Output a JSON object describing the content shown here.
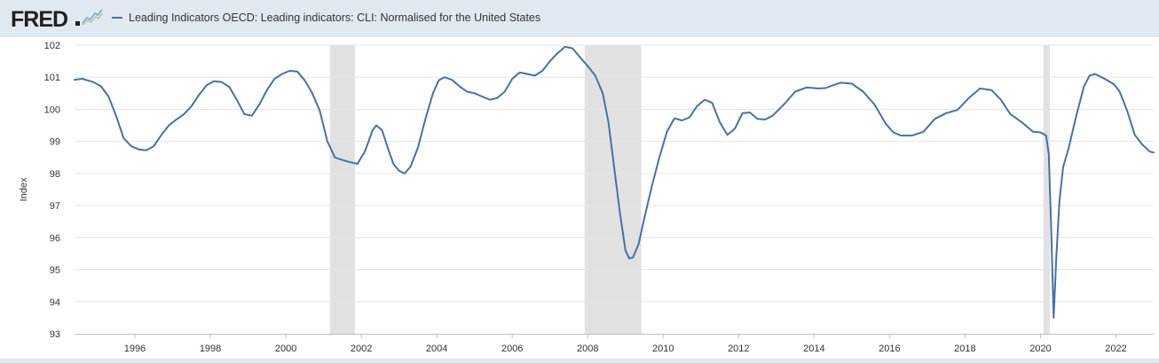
{
  "header": {
    "logo_text": "FRED",
    "legend_label": "Leading Indicators OECD: Leading indicators: CLI: Normalised for the United States"
  },
  "colors": {
    "series": "#4572a7",
    "recession": "#e1e1e1",
    "header_bg": "#e1e9f0",
    "grid": "#e6e6e6"
  },
  "chart_data": {
    "type": "line",
    "title": "",
    "xlabel": "",
    "ylabel": "Index",
    "xlim": [
      1994.4,
      2023.0
    ],
    "ylim": [
      93,
      102
    ],
    "y_ticks": [
      93,
      94,
      95,
      96,
      97,
      98,
      99,
      100,
      101,
      102
    ],
    "x_ticks": [
      1996,
      1998,
      2000,
      2002,
      2004,
      2006,
      2008,
      2010,
      2012,
      2014,
      2016,
      2018,
      2020,
      2022
    ],
    "grid": "horizontal",
    "recessions": [
      [
        2001.17,
        2001.83
      ],
      [
        2007.92,
        2009.42
      ],
      [
        2020.08,
        2020.25
      ]
    ],
    "series": [
      {
        "name": "Leading Indicators OECD: Leading indicators: CLI: Normalised for the United States",
        "points": [
          [
            1994.4,
            100.92
          ],
          [
            1994.6,
            100.95
          ],
          [
            1994.9,
            100.85
          ],
          [
            1995.1,
            100.72
          ],
          [
            1995.3,
            100.4
          ],
          [
            1995.5,
            99.8
          ],
          [
            1995.7,
            99.1
          ],
          [
            1995.9,
            98.85
          ],
          [
            1996.1,
            98.75
          ],
          [
            1996.3,
            98.72
          ],
          [
            1996.5,
            98.85
          ],
          [
            1996.7,
            99.2
          ],
          [
            1996.9,
            99.5
          ],
          [
            1997.1,
            99.68
          ],
          [
            1997.3,
            99.85
          ],
          [
            1997.5,
            100.1
          ],
          [
            1997.7,
            100.45
          ],
          [
            1997.9,
            100.75
          ],
          [
            1998.1,
            100.88
          ],
          [
            1998.3,
            100.85
          ],
          [
            1998.5,
            100.7
          ],
          [
            1998.7,
            100.3
          ],
          [
            1998.9,
            99.85
          ],
          [
            1999.1,
            99.8
          ],
          [
            1999.3,
            100.15
          ],
          [
            1999.5,
            100.6
          ],
          [
            1999.7,
            100.95
          ],
          [
            1999.9,
            101.1
          ],
          [
            2000.1,
            101.2
          ],
          [
            2000.3,
            101.18
          ],
          [
            2000.5,
            100.9
          ],
          [
            2000.7,
            100.5
          ],
          [
            2000.9,
            99.95
          ],
          [
            2001.1,
            99.0
          ],
          [
            2001.3,
            98.5
          ],
          [
            2001.5,
            98.42
          ],
          [
            2001.7,
            98.35
          ],
          [
            2001.9,
            98.3
          ],
          [
            2002.1,
            98.7
          ],
          [
            2002.3,
            99.35
          ],
          [
            2002.4,
            99.5
          ],
          [
            2002.55,
            99.35
          ],
          [
            2002.7,
            98.8
          ],
          [
            2002.85,
            98.3
          ],
          [
            2003.0,
            98.08
          ],
          [
            2003.15,
            98.0
          ],
          [
            2003.3,
            98.2
          ],
          [
            2003.5,
            98.8
          ],
          [
            2003.7,
            99.7
          ],
          [
            2003.9,
            100.5
          ],
          [
            2004.05,
            100.9
          ],
          [
            2004.2,
            101.0
          ],
          [
            2004.4,
            100.92
          ],
          [
            2004.6,
            100.72
          ],
          [
            2004.8,
            100.55
          ],
          [
            2005.0,
            100.5
          ],
          [
            2005.2,
            100.4
          ],
          [
            2005.4,
            100.3
          ],
          [
            2005.6,
            100.35
          ],
          [
            2005.8,
            100.55
          ],
          [
            2006.0,
            100.95
          ],
          [
            2006.2,
            101.15
          ],
          [
            2006.4,
            101.1
          ],
          [
            2006.6,
            101.05
          ],
          [
            2006.8,
            101.2
          ],
          [
            2007.0,
            101.5
          ],
          [
            2007.2,
            101.75
          ],
          [
            2007.4,
            101.95
          ],
          [
            2007.6,
            101.9
          ],
          [
            2007.8,
            101.62
          ],
          [
            2008.0,
            101.35
          ],
          [
            2008.2,
            101.05
          ],
          [
            2008.4,
            100.5
          ],
          [
            2008.55,
            99.6
          ],
          [
            2008.7,
            98.2
          ],
          [
            2008.85,
            96.8
          ],
          [
            2009.0,
            95.6
          ],
          [
            2009.1,
            95.35
          ],
          [
            2009.2,
            95.38
          ],
          [
            2009.35,
            95.8
          ],
          [
            2009.5,
            96.6
          ],
          [
            2009.7,
            97.6
          ],
          [
            2009.9,
            98.5
          ],
          [
            2010.1,
            99.3
          ],
          [
            2010.3,
            99.72
          ],
          [
            2010.5,
            99.65
          ],
          [
            2010.7,
            99.75
          ],
          [
            2010.9,
            100.1
          ],
          [
            2011.1,
            100.3
          ],
          [
            2011.3,
            100.2
          ],
          [
            2011.5,
            99.6
          ],
          [
            2011.7,
            99.2
          ],
          [
            2011.9,
            99.4
          ],
          [
            2012.1,
            99.88
          ],
          [
            2012.3,
            99.9
          ],
          [
            2012.5,
            99.7
          ],
          [
            2012.7,
            99.68
          ],
          [
            2012.9,
            99.8
          ],
          [
            2013.2,
            100.15
          ],
          [
            2013.5,
            100.55
          ],
          [
            2013.8,
            100.68
          ],
          [
            2014.1,
            100.65
          ],
          [
            2014.3,
            100.66
          ],
          [
            2014.5,
            100.75
          ],
          [
            2014.7,
            100.83
          ],
          [
            2015.0,
            100.8
          ],
          [
            2015.3,
            100.55
          ],
          [
            2015.6,
            100.15
          ],
          [
            2015.9,
            99.55
          ],
          [
            2016.1,
            99.28
          ],
          [
            2016.3,
            99.18
          ],
          [
            2016.6,
            99.18
          ],
          [
            2016.9,
            99.3
          ],
          [
            2017.2,
            99.7
          ],
          [
            2017.5,
            99.88
          ],
          [
            2017.8,
            99.98
          ],
          [
            2018.1,
            100.35
          ],
          [
            2018.4,
            100.65
          ],
          [
            2018.7,
            100.6
          ],
          [
            2018.95,
            100.3
          ],
          [
            2019.2,
            99.85
          ],
          [
            2019.5,
            99.6
          ],
          [
            2019.8,
            99.3
          ],
          [
            2020.0,
            99.28
          ],
          [
            2020.15,
            99.18
          ],
          [
            2020.22,
            98.6
          ],
          [
            2020.28,
            96.4
          ],
          [
            2020.35,
            93.5
          ],
          [
            2020.42,
            95.4
          ],
          [
            2020.5,
            97.1
          ],
          [
            2020.6,
            98.2
          ],
          [
            2020.75,
            98.8
          ],
          [
            2020.95,
            99.8
          ],
          [
            2021.15,
            100.7
          ],
          [
            2021.3,
            101.05
          ],
          [
            2021.45,
            101.1
          ],
          [
            2021.7,
            100.95
          ],
          [
            2021.95,
            100.78
          ],
          [
            2022.1,
            100.55
          ],
          [
            2022.3,
            99.95
          ],
          [
            2022.5,
            99.2
          ],
          [
            2022.7,
            98.9
          ],
          [
            2022.9,
            98.68
          ],
          [
            2023.0,
            98.65
          ]
        ]
      }
    ]
  }
}
